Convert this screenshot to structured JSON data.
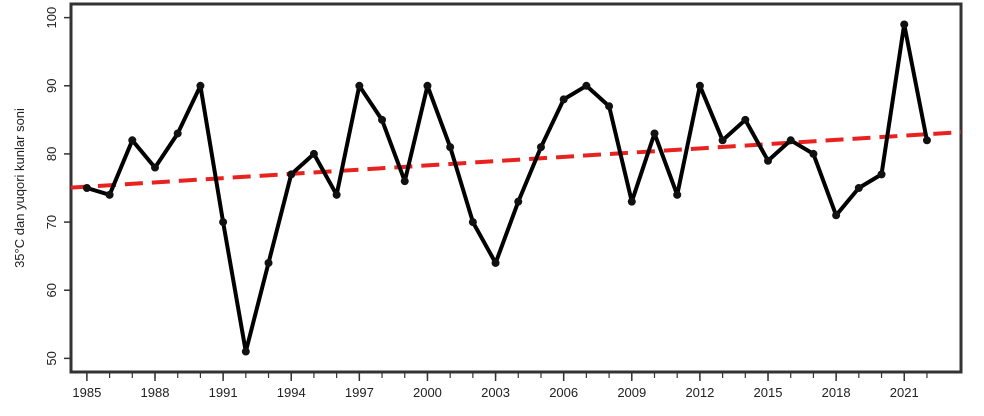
{
  "chart_data": {
    "type": "line",
    "title": "",
    "xlabel": "",
    "ylabel": "35°C dan yuqori kunlar soni",
    "x": [
      1985,
      1986,
      1987,
      1988,
      1989,
      1990,
      1991,
      1992,
      1993,
      1994,
      1995,
      1996,
      1997,
      1998,
      1999,
      2000,
      2001,
      2002,
      2003,
      2004,
      2005,
      2006,
      2007,
      2008,
      2009,
      2010,
      2011,
      2012,
      2013,
      2014,
      2015,
      2016,
      2017,
      2018,
      2019,
      2020,
      2021,
      2022
    ],
    "series": [
      {
        "values": [
          75,
          74,
          82,
          78,
          83,
          90,
          70,
          51,
          64,
          77,
          80,
          74,
          90,
          85,
          76,
          90,
          81,
          70,
          64,
          73,
          81,
          88,
          90,
          87,
          73,
          83,
          74,
          90,
          82,
          85,
          79,
          82,
          80,
          71,
          75,
          77,
          99,
          82
        ],
        "color": "#000000"
      }
    ],
    "trend": {
      "from": [
        1985,
        75.2
      ],
      "to": [
        2023,
        83.1
      ],
      "color": "#e8231f",
      "style": "dashed"
    },
    "xticks": [
      1985,
      1988,
      1991,
      1994,
      1997,
      2000,
      2003,
      2006,
      2009,
      2012,
      2015,
      2018,
      2021
    ],
    "xticklabels": [
      "1985",
      "1988",
      "1991",
      "1994",
      "1997",
      "2000",
      "2003",
      "2006",
      "2009",
      "2012",
      "2015",
      "2018",
      "2021"
    ],
    "yticks": [
      50,
      60,
      70,
      80,
      90,
      100
    ],
    "yticklabels": [
      "50",
      "60",
      "70",
      "80",
      "90",
      "100"
    ],
    "xlim": [
      1984.3,
      2023.5
    ],
    "ylim": [
      48,
      102
    ],
    "grid": false
  }
}
